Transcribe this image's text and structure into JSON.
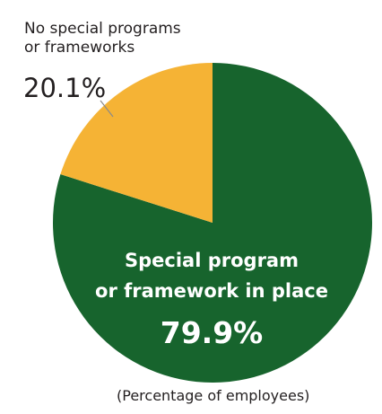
{
  "chart_data": {
    "type": "pie",
    "slices": [
      {
        "label_lines": [
          "Special program",
          "or framework in place"
        ],
        "value": 79.9,
        "value_text": "79.9%",
        "color": "#17642d"
      },
      {
        "label_lines": [
          "No special programs",
          "or frameworks"
        ],
        "value": 20.1,
        "value_text": "20.1%",
        "color": "#f5b335"
      }
    ],
    "note": "(Percentage of employees)"
  }
}
